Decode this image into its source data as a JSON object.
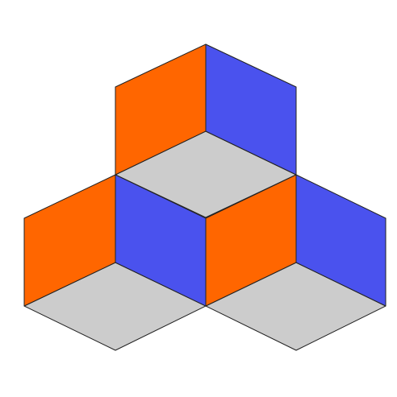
{
  "figure": {
    "description_kind": "isometric-cube-arrangement",
    "face_count": 9,
    "colors": {
      "left_face": "#ff6600",
      "right_face": "#4a52ee",
      "floor_face": "#cccccc",
      "edge": "#222222",
      "background": "#ffffff"
    }
  }
}
